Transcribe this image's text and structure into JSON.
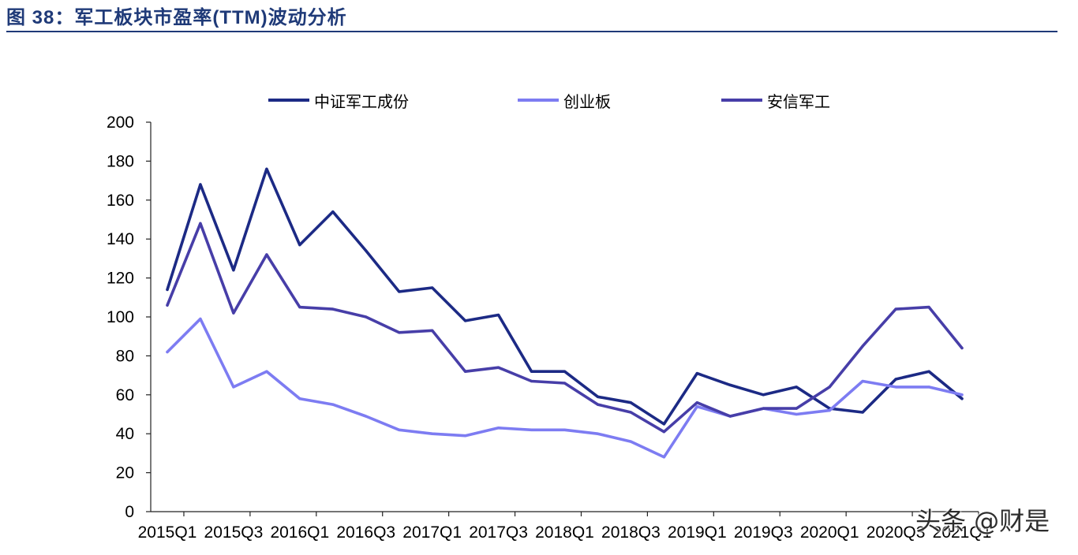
{
  "figure": {
    "caption": "图 38：军工板块市盈率(TTM)波动分析"
  },
  "watermark": "头条 @财是",
  "colors": {
    "caption": "#1f3a78",
    "axis": "#222222"
  },
  "chart_data": {
    "type": "line",
    "categories": [
      "2015Q1",
      "2015Q2",
      "2015Q3",
      "2015Q4",
      "2016Q1",
      "2016Q2",
      "2016Q3",
      "2016Q4",
      "2017Q1",
      "2017Q2",
      "2017Q3",
      "2017Q4",
      "2018Q1",
      "2018Q2",
      "2018Q3",
      "2018Q4",
      "2019Q1",
      "2019Q2",
      "2019Q3",
      "2019Q4",
      "2020Q1",
      "2020Q2",
      "2020Q3",
      "2020Q4",
      "2021Q1"
    ],
    "ylim": [
      0,
      200
    ],
    "yticks": [
      0,
      20,
      40,
      60,
      80,
      100,
      120,
      140,
      160,
      180,
      200
    ],
    "grid": false,
    "legend_position": "top",
    "series": [
      {
        "name": "中证军工成份",
        "color": "#1c2a85",
        "values": [
          114,
          168,
          124,
          176,
          137,
          154,
          134,
          113,
          115,
          98,
          101,
          72,
          72,
          59,
          56,
          45,
          71,
          65,
          60,
          64,
          53,
          51,
          68,
          72,
          58
        ]
      },
      {
        "name": "创业板",
        "color": "#7d7cf2",
        "values": [
          82,
          99,
          64,
          72,
          58,
          55,
          49,
          42,
          40,
          39,
          43,
          42,
          42,
          40,
          36,
          28,
          54,
          49,
          53,
          50,
          52,
          67,
          64,
          64,
          60
        ]
      },
      {
        "name": "安信军工",
        "color": "#473ea8",
        "values": [
          106,
          148,
          102,
          132,
          105,
          104,
          100,
          92,
          93,
          72,
          74,
          67,
          66,
          55,
          51,
          41,
          56,
          49,
          53,
          53,
          64,
          85,
          104,
          105,
          84
        ]
      }
    ]
  }
}
